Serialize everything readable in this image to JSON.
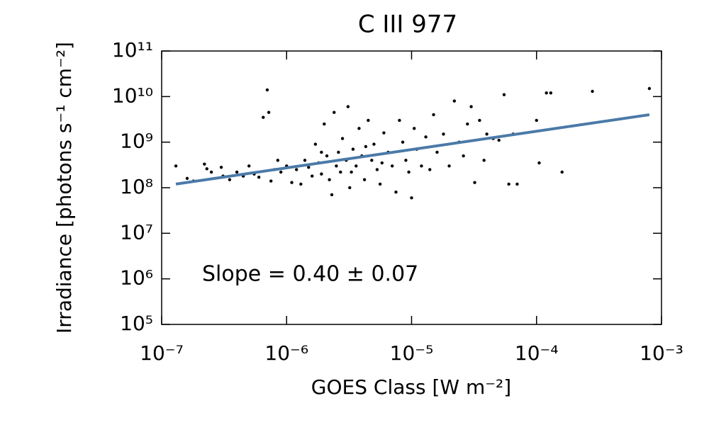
{
  "chart_data": {
    "type": "scatter",
    "title": "C III 977",
    "xlabel": "GOES Class [W m⁻²]",
    "ylabel": "Irradiance [photons s⁻¹ cm⁻²]",
    "annotation": "Slope = 0.40 ± 0.07",
    "log_x": true,
    "log_y": true,
    "xlim": [
      1e-07,
      0.001
    ],
    "ylim": [
      100000.0,
      100000000000.0
    ],
    "xticks": [
      {
        "value": 1e-07,
        "label": "10⁻⁷"
      },
      {
        "value": 1e-06,
        "label": "10⁻⁶"
      },
      {
        "value": 1e-05,
        "label": "10⁻⁵"
      },
      {
        "value": 0.0001,
        "label": "10⁻⁴"
      },
      {
        "value": 0.001,
        "label": "10⁻³"
      }
    ],
    "yticks": [
      {
        "value": 100000.0,
        "label": "10⁵"
      },
      {
        "value": 1000000.0,
        "label": "10⁶"
      },
      {
        "value": 10000000.0,
        "label": "10⁷"
      },
      {
        "value": 100000000.0,
        "label": "10⁸"
      },
      {
        "value": 1000000000.0,
        "label": "10⁹"
      },
      {
        "value": 10000000000.0,
        "label": "10¹⁰"
      },
      {
        "value": 100000000000.0,
        "label": "10¹¹"
      }
    ],
    "color": "#000000",
    "x": [
      1.3e-07,
      1.6e-07,
      1.8e-07,
      2.2e-07,
      2.3e-07,
      2.5e-07,
      3e-07,
      3.1e-07,
      3.5e-07,
      4e-07,
      4.5e-07,
      5e-07,
      5.5e-07,
      6e-07,
      6.5e-07,
      7e-07,
      7.2e-07,
      7.5e-07,
      8e-07,
      8.5e-07,
      9e-07,
      1e-06,
      1.1e-06,
      1.2e-06,
      1.3e-06,
      1.4e-06,
      1.5e-06,
      1.6e-06,
      1.7e-06,
      1.8e-06,
      1.9e-06,
      2e-06,
      2.1e-06,
      2.2e-06,
      2.3e-06,
      2.4e-06,
      2.5e-06,
      2.6e-06,
      2.7e-06,
      2.8e-06,
      3e-06,
      3.1e-06,
      3.2e-06,
      3.4e-06,
      3.6e-06,
      3.8e-06,
      4e-06,
      4.2e-06,
      4.5e-06,
      4.8e-06,
      5e-06,
      5.3e-06,
      5.6e-06,
      6e-06,
      6.5e-06,
      7e-06,
      7.5e-06,
      8e-06,
      8.5e-06,
      9e-06,
      1e-05,
      1.05e-05,
      1.1e-05,
      1.2e-05,
      1.3e-05,
      1.4e-05,
      1.5e-05,
      1.6e-05,
      1.8e-05,
      2e-05,
      2.2e-05,
      2.4e-05,
      2.6e-05,
      2.8e-05,
      3e-05,
      3.2e-05,
      3.5e-05,
      3.8e-05,
      4e-05,
      4.5e-05,
      5e-05,
      5.5e-05,
      6e-05,
      6.5e-05,
      7e-05,
      0.0001,
      0.000105,
      0.00012,
      0.00013,
      0.00016,
      0.00028,
      0.0008,
      1.9e-06,
      3.3e-06,
      4.3e-06,
      5.8e-06,
      9.5e-06
    ],
    "y": [
      300000000.0,
      160000000.0,
      140000000.0,
      330000000.0,
      260000000.0,
      220000000.0,
      280000000.0,
      180000000.0,
      150000000.0,
      220000000.0,
      180000000.0,
      300000000.0,
      200000000.0,
      170000000.0,
      3500000000.0,
      14000000000.0,
      4500000000.0,
      140000000.0,
      250000000.0,
      400000000.0,
      220000000.0,
      300000000.0,
      130000000.0,
      250000000.0,
      120000000.0,
      400000000.0,
      280000000.0,
      180000000.0,
      900000000.0,
      350000000.0,
      200000000.0,
      2500000000.0,
      500000000.0,
      150000000.0,
      70000000.0,
      4500000000.0,
      300000000.0,
      600000000.0,
      220000000.0,
      1200000000.0,
      400000000.0,
      6000000000.0,
      100000000.0,
      700000000.0,
      300000000.0,
      2000000000.0,
      500000000.0,
      150000000.0,
      3000000000.0,
      400000000.0,
      900000000.0,
      250000000.0,
      120000000.0,
      1600000000.0,
      600000000.0,
      300000000.0,
      80000000.0,
      3000000000.0,
      1000000000.0,
      400000000.0,
      60000000.0,
      2000000000.0,
      700000000.0,
      300000000.0,
      1300000000.0,
      250000000.0,
      4000000000.0,
      600000000.0,
      1500000000.0,
      300000000.0,
      8000000000.0,
      1000000000.0,
      500000000.0,
      2500000000.0,
      6000000000.0,
      130000000.0,
      3000000000.0,
      400000000.0,
      1500000000.0,
      1200000000.0,
      1100000000.0,
      11000000000.0,
      120000000.0,
      1500000000.0,
      120000000.0,
      3000000000.0,
      350000000.0,
      12000000000.0,
      12000000000.0,
      220000000.0,
      13000000000.0,
      15000000000.0,
      600000000.0,
      220000000.0,
      800000000.0,
      350000000.0,
      220000000.0
    ],
    "fit": {
      "color": "#4a7aa8",
      "x": [
        1.3e-07,
        0.0008
      ],
      "y": [
        120000000.0,
        4000000000.0
      ]
    }
  }
}
